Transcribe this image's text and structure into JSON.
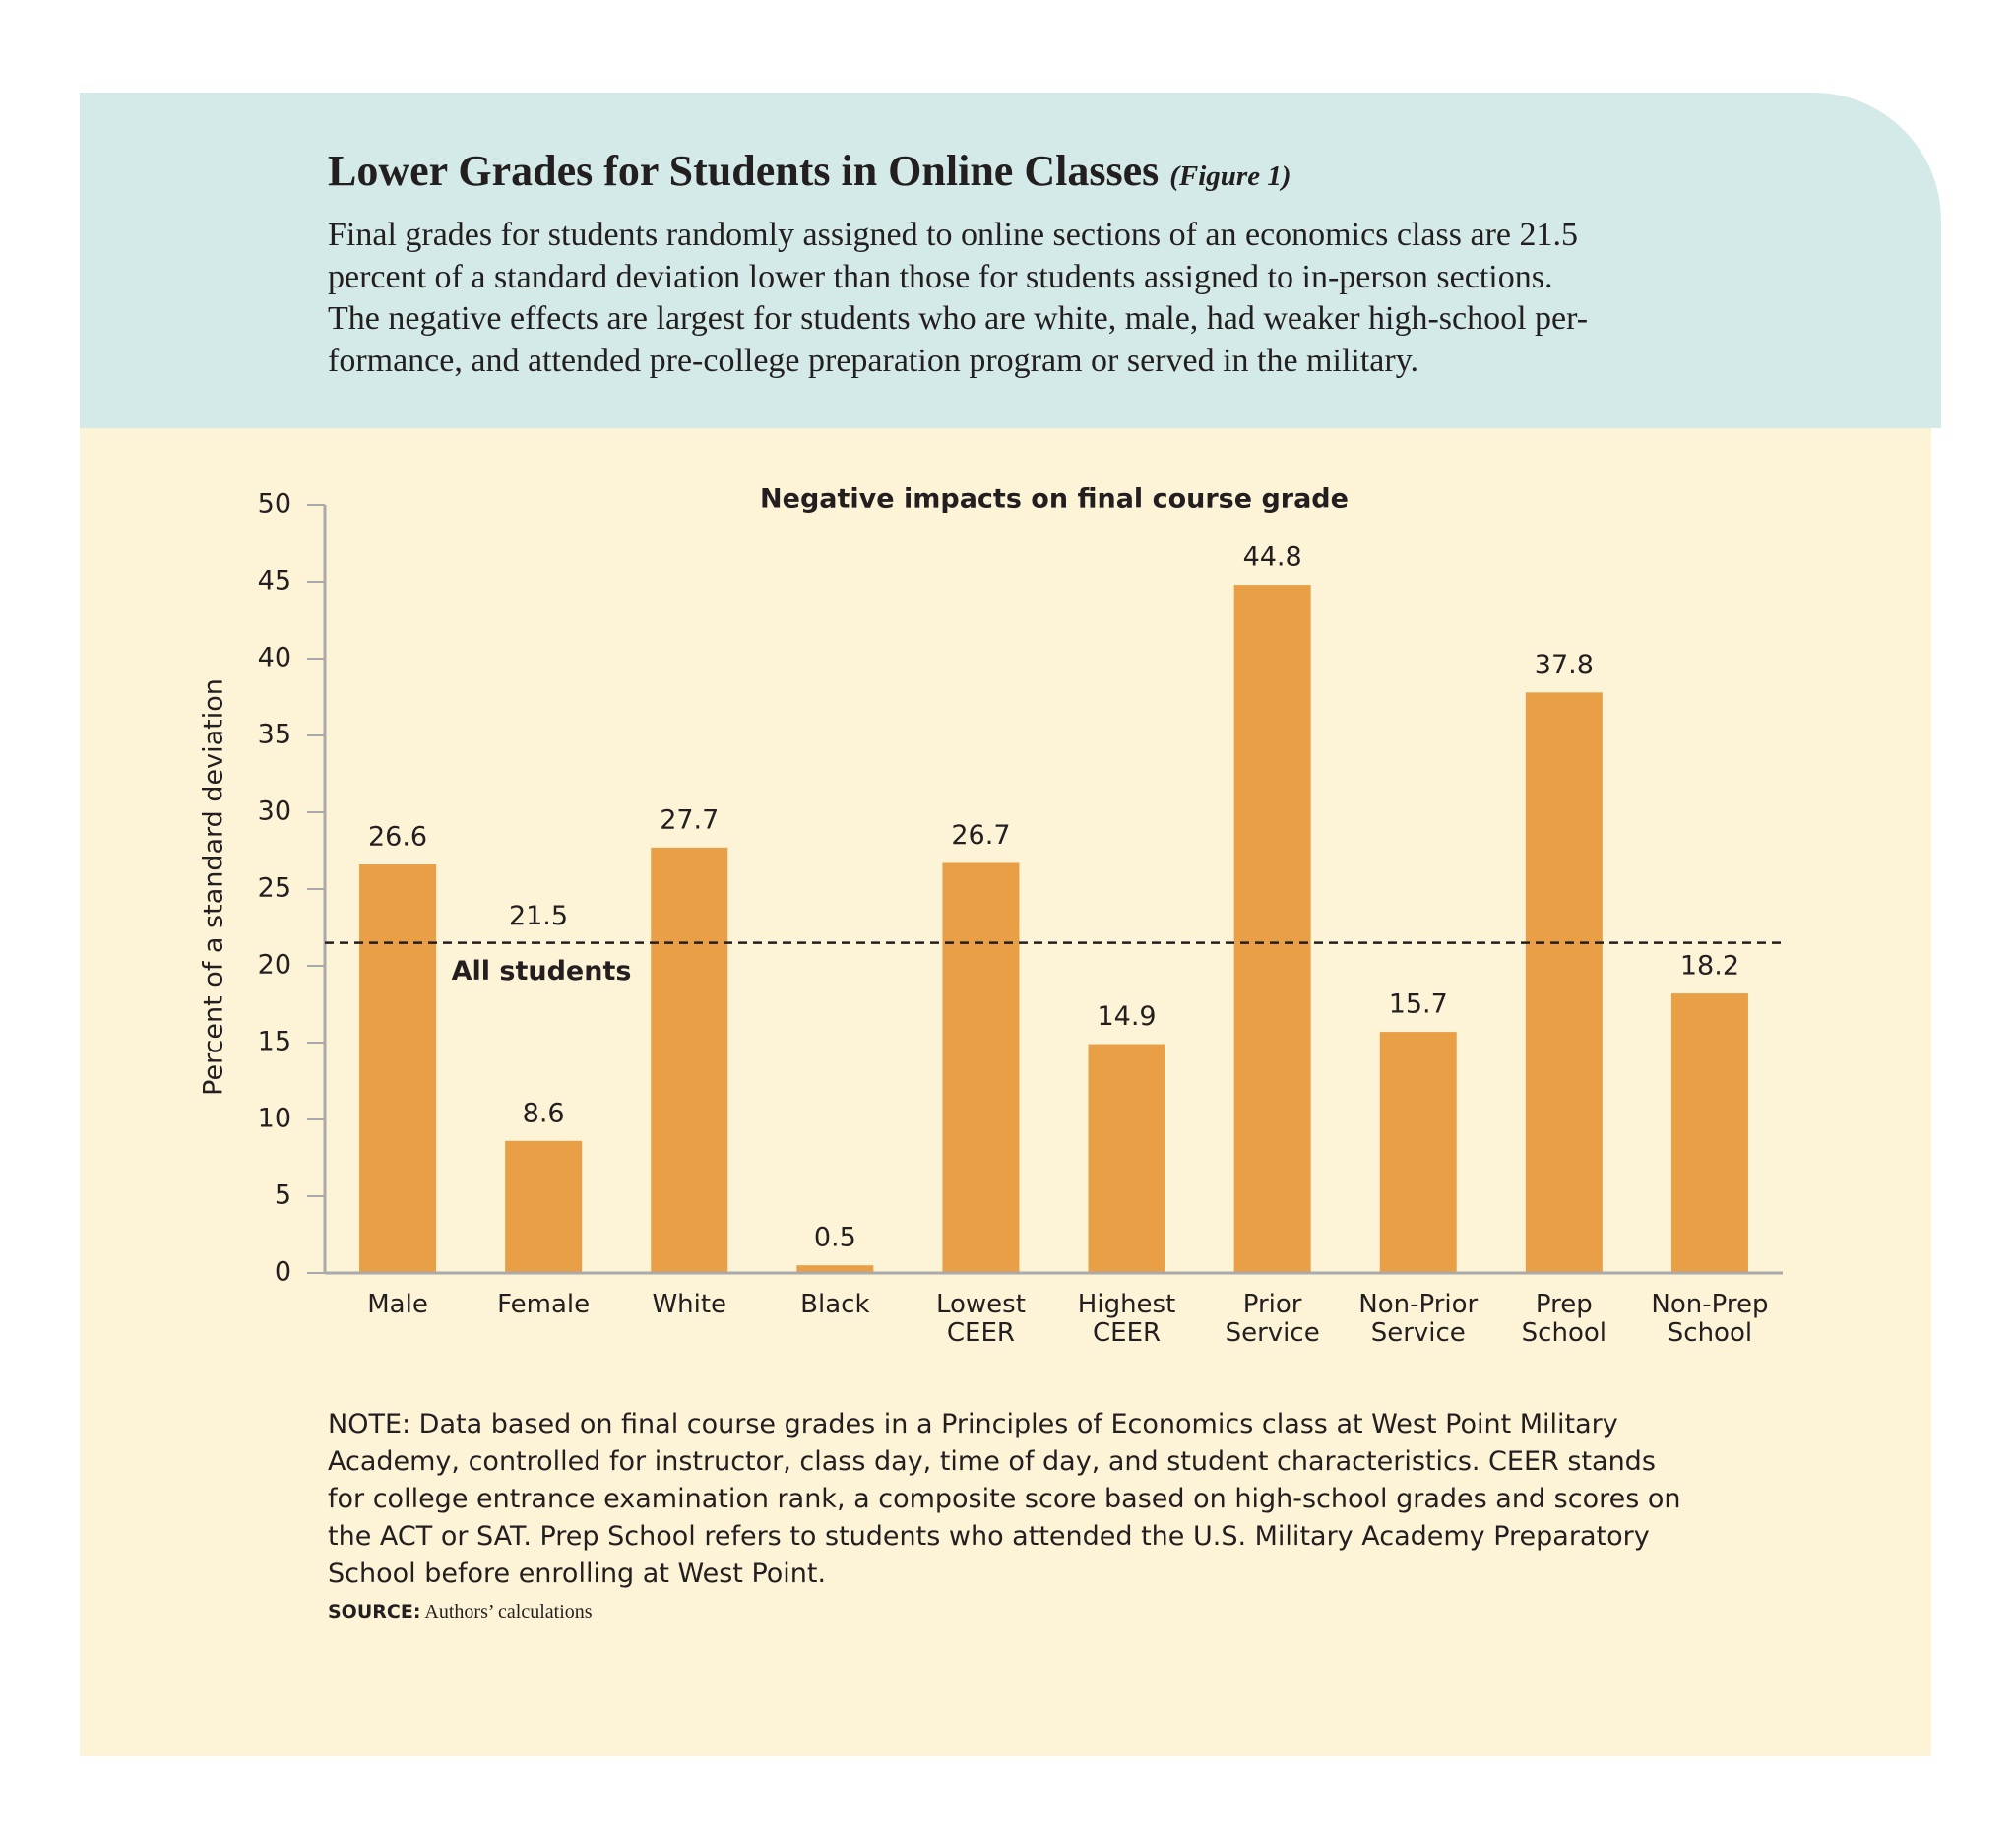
{
  "header": {
    "title": "Lower Grades for Students in Online Classes",
    "figure_label": "(Figure 1)",
    "description": [
      "Final grades for students randomly assigned to online sections of an economics class are 21.5",
      "percent of a standard deviation lower than those for students assigned to in-person sections.",
      "The negative effects are largest for students who are white, male, had weaker high-school per-",
      "formance, and attended pre-college preparation program or served in the military."
    ]
  },
  "chart_data": {
    "type": "bar",
    "title": "Negative impacts on final course grade",
    "y_label": "Percent of a standard deviation",
    "categories": [
      "Male",
      "Female",
      "White",
      "Black",
      "Lowest CEER",
      "Highest CEER",
      "Prior Service",
      "Non-Prior Service",
      "Prep School",
      "Non-Prep School"
    ],
    "values": [
      26.6,
      8.6,
      27.7,
      0.5,
      26.7,
      14.9,
      44.8,
      15.7,
      37.8,
      18.2
    ],
    "color": "#e99f46",
    "ylim": [
      0,
      50
    ],
    "yticks": [
      0,
      5,
      10,
      15,
      20,
      25,
      30,
      35,
      40,
      45,
      50
    ],
    "reference_line": {
      "value": 21.5,
      "label": "All students"
    }
  },
  "note": [
    "NOTE: Data based on final course grades in a Principles of Economics class at West Point Military",
    "Academy, controlled for instructor, class day, time of day, and student characteristics. CEER stands",
    "for college entrance examination rank, a composite score based on high-school grades and scores on",
    "the ACT or SAT. Prep School refers to students who attended the U.S. Military Academy Preparatory",
    "School before enrolling at West Point."
  ],
  "source": {
    "label": "SOURCE:",
    "text": "Authors’ calculations"
  }
}
